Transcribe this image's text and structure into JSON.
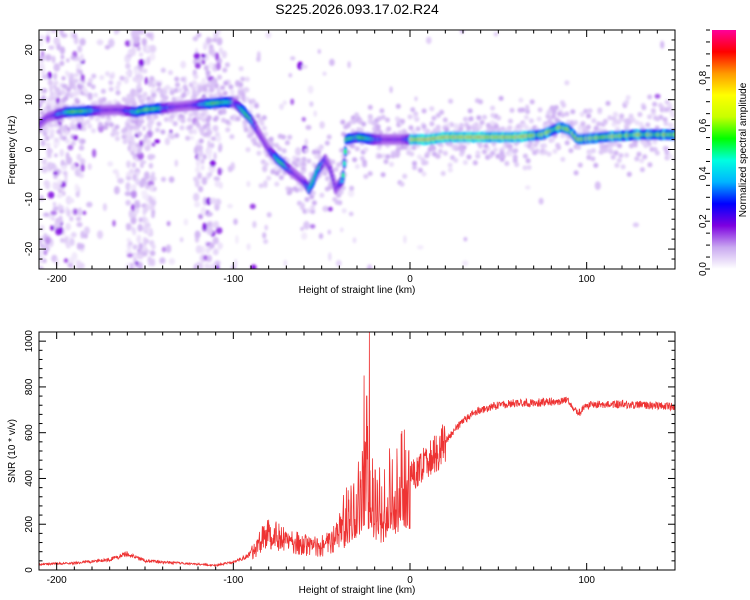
{
  "title": "S225.2026.093.17.02.R24",
  "chart_data": [
    {
      "type": "heatmap",
      "xlabel": "Height of straight line (km)",
      "ylabel": "Frequency (Hz)",
      "xlim": [
        -210,
        150
      ],
      "ylim": [
        -24,
        24
      ],
      "x_ticks": [
        -200,
        -100,
        0,
        100
      ],
      "y_ticks": [
        -20,
        -10,
        0,
        10,
        20
      ],
      "colorbar": {
        "label": "Normalized spectral amplitude",
        "range": [
          0,
          1
        ],
        "ticks": [
          0.0,
          0.2,
          0.4,
          0.6,
          0.8
        ],
        "tick_labels": [
          "0.0",
          "0.2",
          "0.4",
          "0.6",
          "0.8"
        ],
        "stops": [
          "#ffffff",
          "#c9a8f0",
          "#7d00e0",
          "#0000ff",
          "#00b4ff",
          "#00ffe0",
          "#00ff00",
          "#c8ff00",
          "#ffff00",
          "#ff9900",
          "#ff0000",
          "#ff0099"
        ]
      },
      "ridge_centers": [
        [
          -210,
          5
        ],
        [
          -205,
          6.5
        ],
        [
          -195,
          7.5
        ],
        [
          -180,
          7.8
        ],
        [
          -165,
          8
        ],
        [
          -155,
          7.5
        ],
        [
          -150,
          8
        ],
        [
          -135,
          8.5
        ],
        [
          -120,
          9
        ],
        [
          -105,
          9.5
        ],
        [
          -100,
          9.5
        ],
        [
          -95,
          8
        ],
        [
          -90,
          6
        ],
        [
          -85,
          3
        ],
        [
          -80,
          0
        ],
        [
          -75,
          -2
        ],
        [
          -70,
          -3.5
        ],
        [
          -65,
          -5
        ],
        [
          -60,
          -6.5
        ],
        [
          -57,
          -8
        ],
        [
          -52,
          -4
        ],
        [
          -48,
          -2
        ],
        [
          -45,
          -4
        ],
        [
          -42,
          -8
        ],
        [
          -38,
          -6
        ],
        [
          -36,
          2
        ],
        [
          -30,
          2.5
        ],
        [
          -20,
          2
        ],
        [
          -10,
          2
        ],
        [
          0,
          2
        ],
        [
          10,
          2
        ],
        [
          20,
          2.5
        ],
        [
          40,
          2.5
        ],
        [
          60,
          2.5
        ],
        [
          75,
          3
        ],
        [
          85,
          4.5
        ],
        [
          90,
          4
        ],
        [
          95,
          2
        ],
        [
          110,
          2.5
        ],
        [
          130,
          3
        ],
        [
          150,
          3
        ]
      ]
    },
    {
      "type": "line",
      "xlabel": "Height of straight line (km)",
      "ylabel": "SNR (10 * v/v)",
      "xlim": [
        -210,
        150
      ],
      "ylim": [
        0,
        1040
      ],
      "x_ticks": [
        -200,
        -100,
        0,
        100
      ],
      "y_ticks": [
        0,
        200,
        400,
        600,
        800,
        1000
      ],
      "color": "#ee3333",
      "series_envelope": [
        [
          -210,
          25
        ],
        [
          -190,
          30
        ],
        [
          -170,
          45
        ],
        [
          -160,
          70
        ],
        [
          -150,
          40
        ],
        [
          -130,
          30
        ],
        [
          -110,
          20
        ],
        [
          -100,
          35
        ],
        [
          -92,
          60
        ],
        [
          -85,
          120
        ],
        [
          -80,
          170
        ],
        [
          -72,
          130
        ],
        [
          -65,
          120
        ],
        [
          -55,
          100
        ],
        [
          -48,
          110
        ],
        [
          -42,
          140
        ],
        [
          -38,
          200
        ],
        [
          -33,
          280
        ],
        [
          -28,
          330
        ],
        [
          -24,
          380
        ],
        [
          -20,
          300
        ],
        [
          -15,
          250
        ],
        [
          -10,
          330
        ],
        [
          -5,
          380
        ],
        [
          0,
          400
        ],
        [
          5,
          430
        ],
        [
          10,
          480
        ],
        [
          15,
          520
        ],
        [
          20,
          560
        ],
        [
          25,
          610
        ],
        [
          30,
          650
        ],
        [
          35,
          680
        ],
        [
          40,
          700
        ],
        [
          50,
          720
        ],
        [
          60,
          730
        ],
        [
          70,
          730
        ],
        [
          80,
          735
        ],
        [
          90,
          740
        ],
        [
          95,
          680
        ],
        [
          100,
          720
        ],
        [
          120,
          725
        ],
        [
          135,
          720
        ],
        [
          150,
          715
        ]
      ],
      "spikes": [
        [
          -23,
          1040
        ],
        [
          -26,
          850
        ],
        [
          -24.5,
          760
        ],
        [
          -27,
          520
        ]
      ]
    }
  ]
}
